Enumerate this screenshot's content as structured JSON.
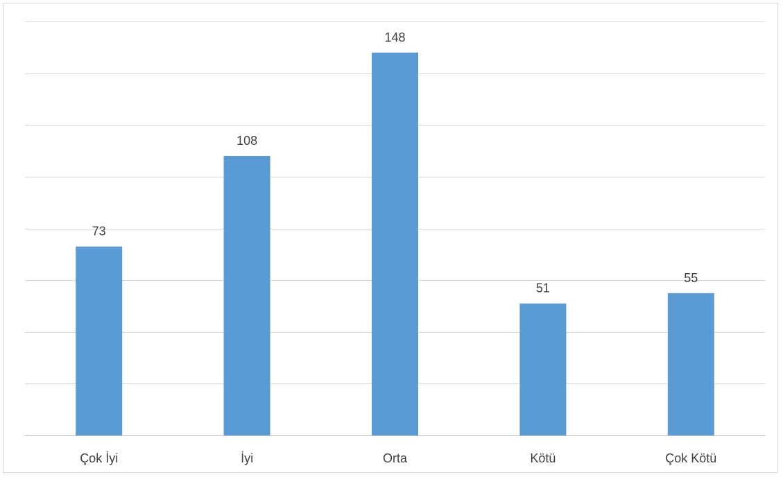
{
  "chart_data": {
    "type": "bar",
    "categories": [
      "Çok İyi",
      "İyi",
      "Orta",
      "Kötü",
      "Çok Kötü"
    ],
    "values": [
      73,
      108,
      148,
      51,
      55
    ],
    "ylim": [
      0,
      160
    ],
    "yticks_step": 20,
    "grid": true,
    "y_tick_labels_shown": false,
    "data_labels": true,
    "bar_color": "#5b9bd5",
    "grid_color": "#d9d9d9",
    "axis_color": "#bfbfbf",
    "text_color": "#404040"
  }
}
